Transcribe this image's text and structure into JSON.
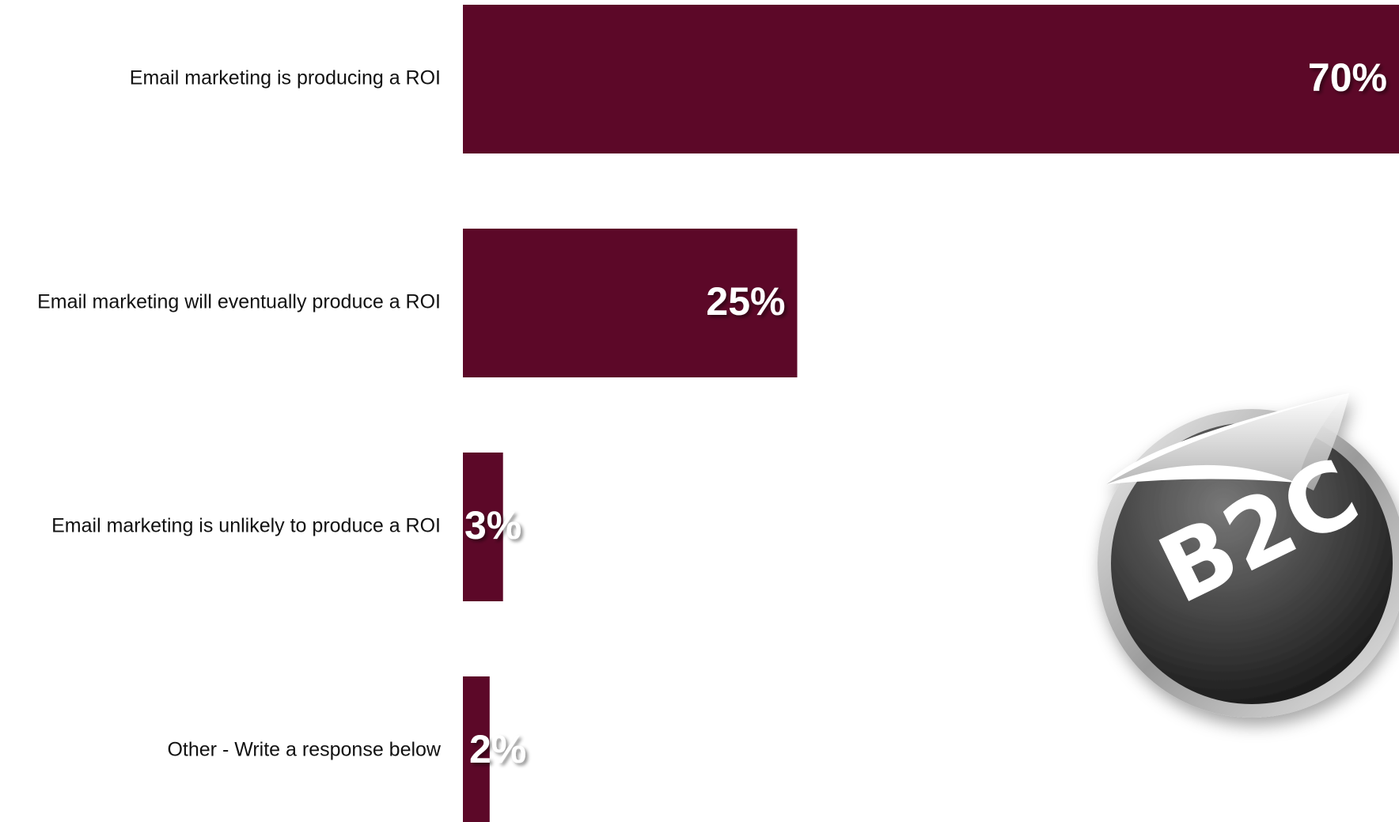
{
  "chart_data": {
    "type": "hbar",
    "categories": [
      "Email marketing is producing a ROI",
      "Email marketing will eventually produce a ROI",
      "Email marketing is unlikely to produce a ROI",
      "Other - Write a response below"
    ],
    "values": [
      70,
      25,
      3,
      2
    ],
    "value_labels": [
      "70%",
      "25%",
      "3%",
      "2%"
    ],
    "color": "#5c0828",
    "annotation": "B2C"
  }
}
